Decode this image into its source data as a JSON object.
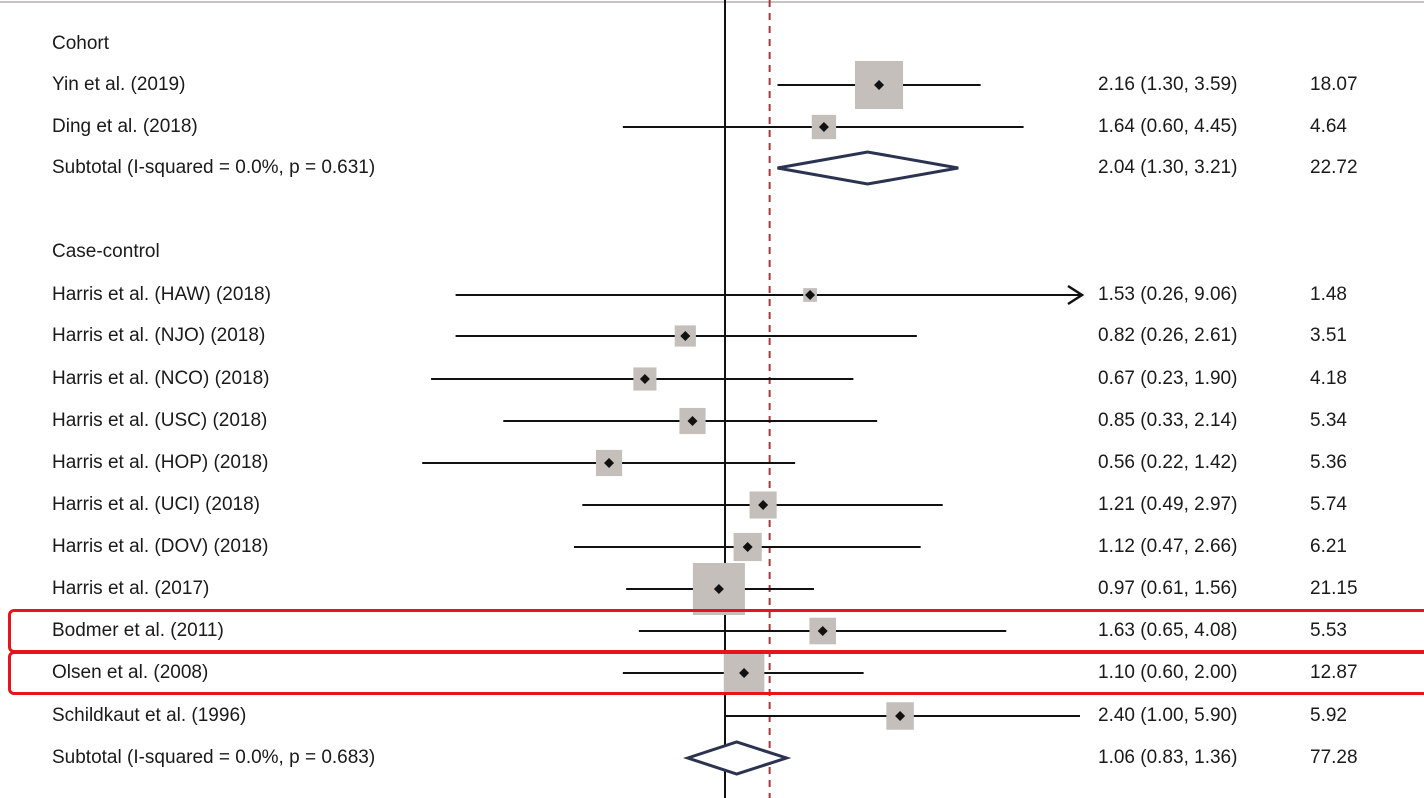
{
  "chart_data": {
    "type": "forest",
    "x_scale": "log",
    "null_line": 1,
    "overall_line": 1.25,
    "groups": [
      {
        "name": "Cohort",
        "studies": [
          {
            "label": "Yin et al. (2019)",
            "est": 2.16,
            "lo": 1.3,
            "hi": 3.59,
            "weight": 18.07,
            "est_text": "2.16 (1.30, 3.59)",
            "weight_text": "18.07"
          },
          {
            "label": "Ding et al. (2018)",
            "est": 1.64,
            "lo": 0.6,
            "hi": 4.45,
            "weight": 4.64,
            "est_text": "1.64 (0.60, 4.45)",
            "weight_text": "4.64"
          }
        ],
        "subtotal": {
          "label": "Subtotal  (I-squared = 0.0%, p = 0.631)",
          "est": 2.04,
          "lo": 1.3,
          "hi": 3.21,
          "est_text": "2.04 (1.30, 3.21)",
          "weight_text": "22.72"
        }
      },
      {
        "name": "Case-control",
        "studies": [
          {
            "label": "Harris et al. (HAW) (2018)",
            "est": 1.53,
            "lo": 0.26,
            "hi": 9.06,
            "weight": 1.48,
            "est_text": "1.53 (0.26, 9.06)",
            "weight_text": "1.48",
            "arrow": true
          },
          {
            "label": "Harris et al. (NJO) (2018)",
            "est": 0.82,
            "lo": 0.26,
            "hi": 2.61,
            "weight": 3.51,
            "est_text": "0.82 (0.26, 2.61)",
            "weight_text": "3.51"
          },
          {
            "label": "Harris et al. (NCO) (2018)",
            "est": 0.67,
            "lo": 0.23,
            "hi": 1.9,
            "weight": 4.18,
            "est_text": "0.67 (0.23, 1.90)",
            "weight_text": "4.18"
          },
          {
            "label": "Harris et al. (USC) (2018)",
            "est": 0.85,
            "lo": 0.33,
            "hi": 2.14,
            "weight": 5.34,
            "est_text": "0.85 (0.33, 2.14)",
            "weight_text": "5.34"
          },
          {
            "label": "Harris et al. (HOP) (2018)",
            "est": 0.56,
            "lo": 0.22,
            "hi": 1.42,
            "weight": 5.36,
            "est_text": "0.56 (0.22, 1.42)",
            "weight_text": "5.36"
          },
          {
            "label": "Harris et al. (UCI) (2018)",
            "est": 1.21,
            "lo": 0.49,
            "hi": 2.97,
            "weight": 5.74,
            "est_text": "1.21 (0.49, 2.97)",
            "weight_text": "5.74"
          },
          {
            "label": "Harris et al. (DOV) (2018)",
            "est": 1.12,
            "lo": 0.47,
            "hi": 2.66,
            "weight": 6.21,
            "est_text": "1.12 (0.47, 2.66)",
            "weight_text": "6.21"
          },
          {
            "label": "Harris et al. (2017)",
            "est": 0.97,
            "lo": 0.61,
            "hi": 1.56,
            "weight": 21.15,
            "est_text": "0.97 (0.61, 1.56)",
            "weight_text": "21.15"
          },
          {
            "label": "Bodmer et al. (2011)",
            "est": 1.63,
            "lo": 0.65,
            "hi": 4.08,
            "weight": 5.53,
            "est_text": "1.63 (0.65, 4.08)",
            "weight_text": "5.53",
            "highlighted": true
          },
          {
            "label": "Olsen et al. (2008)",
            "est": 1.1,
            "lo": 0.6,
            "hi": 2.0,
            "weight": 12.87,
            "est_text": "1.10 (0.60, 2.00)",
            "weight_text": "12.87",
            "highlighted": true
          },
          {
            "label": "Schildkaut et al. (1996)",
            "est": 2.4,
            "lo": 1.0,
            "hi": 5.9,
            "weight": 5.92,
            "est_text": "2.40 (1.00, 5.90)",
            "weight_text": "5.92"
          }
        ],
        "subtotal": {
          "label": "Subtotal  (I-squared = 0.0%, p = 0.683)",
          "est": 1.06,
          "lo": 0.83,
          "hi": 1.36,
          "est_text": "1.06 (0.83, 1.36)",
          "weight_text": "77.28"
        }
      }
    ],
    "colors": {
      "box": "#c4bfbb",
      "line": "#111111",
      "diamond": "#2b3350",
      "overall_line": "#a63a3a",
      "highlight": "#e8141b"
    }
  }
}
